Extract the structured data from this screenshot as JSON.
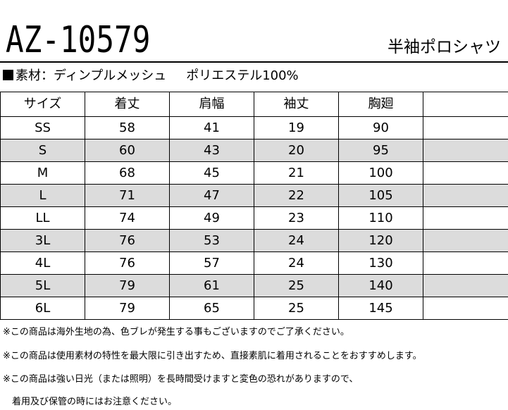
{
  "model_number": "AZ-10579",
  "product_type": "半袖ポロシャツ",
  "material": {
    "label": "素材：ディンプルメッシュ",
    "composition": "ポリエステル100%"
  },
  "size_table": {
    "headers": [
      "サイズ",
      "着丈",
      "肩幅",
      "袖丈",
      "胸廻",
      ""
    ],
    "rows": [
      [
        "SS",
        "58",
        "41",
        "19",
        "90",
        ""
      ],
      [
        "S",
        "60",
        "43",
        "20",
        "95",
        ""
      ],
      [
        "M",
        "68",
        "45",
        "21",
        "100",
        ""
      ],
      [
        "L",
        "71",
        "47",
        "22",
        "105",
        ""
      ],
      [
        "LL",
        "74",
        "49",
        "23",
        "110",
        ""
      ],
      [
        "3L",
        "76",
        "53",
        "24",
        "120",
        ""
      ],
      [
        "4L",
        "76",
        "57",
        "24",
        "130",
        ""
      ],
      [
        "5L",
        "79",
        "61",
        "25",
        "140",
        ""
      ],
      [
        "6L",
        "79",
        "65",
        "25",
        "145",
        ""
      ]
    ],
    "shaded_row_color": "#dcdcdc"
  },
  "notes": [
    "※この商品は海外生地の為、色ブレが発生する事もございますのでご了承ください。",
    "※この商品は使用素材の特性を最大限に引き出すため、直接素肌に着用されることをおすすめします。",
    "※この商品は強い日光（または照明）を長時間受けますと変色の恐れがありますので、",
    "　着用及び保管の時にはお注意ください。"
  ]
}
